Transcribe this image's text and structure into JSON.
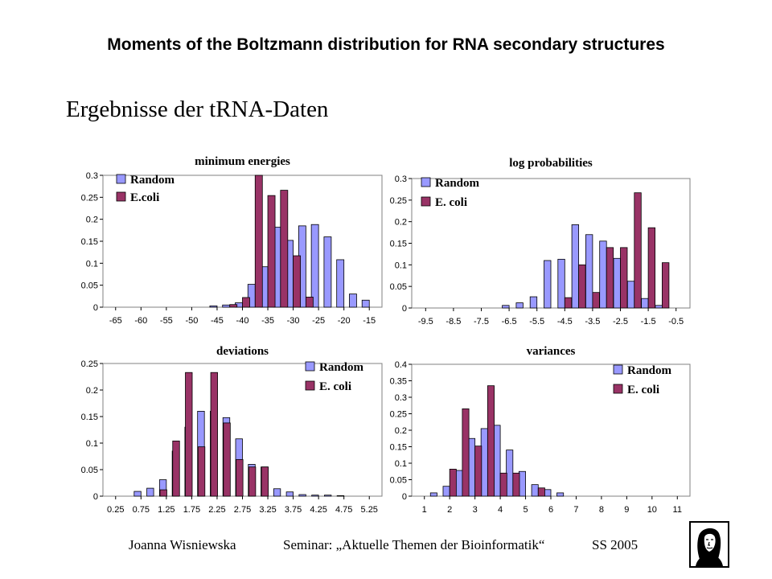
{
  "header": {
    "title": "Moments of the Boltzmann distribution for RNA secondary structures"
  },
  "slide": {
    "subtitle": "Ergebnisse der tRNA-Daten"
  },
  "footer": {
    "author": "Joanna Wisniewska",
    "seminar": "Seminar: „Aktuelle Themen der Bioinformatik“",
    "term": "SS 2005"
  },
  "colors": {
    "random": "#9999ff",
    "ecoli": "#993366",
    "plot_background": "#ffffff"
  },
  "logo_icon": "goethe-portrait-icon",
  "chart_data": [
    {
      "type": "bar",
      "title": "minimum energies",
      "xlabel": "",
      "ylabel": "",
      "ylim": [
        0,
        0.3
      ],
      "yticks": [
        "0",
        "0.05",
        "0.1",
        "0.15",
        "0.2",
        "0.25",
        "0.3"
      ],
      "xticks": [
        "-65",
        "-60",
        "-55",
        "-50",
        "-45",
        "-40",
        "-35",
        "-30",
        "-25",
        "-20",
        "-15"
      ],
      "x": [
        -45,
        -42.5,
        -40,
        -37.5,
        -35,
        -32.5,
        -30,
        -27.5,
        -25,
        -22.5,
        -20,
        -17.5,
        -15
      ],
      "legend_position": "top-left",
      "series": [
        {
          "name": "Random",
          "values": [
            0.003,
            0.005,
            0.01,
            0.052,
            0.092,
            0.182,
            0.152,
            0.185,
            0.188,
            0.16,
            0.108,
            0.03,
            0.016
          ]
        },
        {
          "name": "E.coli",
          "values": [
            0,
            0.006,
            0.022,
            0.3,
            0.254,
            0.266,
            0.117,
            0.023,
            0,
            0,
            0,
            0,
            0
          ]
        }
      ]
    },
    {
      "type": "bar",
      "title": "log probabilities",
      "xlabel": "",
      "ylabel": "",
      "ylim": [
        0,
        0.3
      ],
      "yticks": [
        "0",
        "0.05",
        "0.1",
        "0.15",
        "0.2",
        "0.25",
        "0.3"
      ],
      "xticks": [
        "-9.5",
        "-8.5",
        "-7.5",
        "-6.5",
        "-5.5",
        "-4.5",
        "-3.5",
        "-2.5",
        "-1.5",
        "-0.5"
      ],
      "x": [
        -6.5,
        -6,
        -5.5,
        -5,
        -4.5,
        -4,
        -3.5,
        -3,
        -2.5,
        -2,
        -1.5,
        -1
      ],
      "legend_position": "top-left",
      "series": [
        {
          "name": "Random",
          "values": [
            0.006,
            0.012,
            0.026,
            0.11,
            0.113,
            0.193,
            0.17,
            0.155,
            0.115,
            0.062,
            0.022,
            0.006
          ]
        },
        {
          "name": "E. coli",
          "values": [
            0,
            0,
            0,
            0,
            0.024,
            0.1,
            0.036,
            0.14,
            0.14,
            0.267,
            0.186,
            0.105
          ]
        }
      ]
    },
    {
      "type": "bar",
      "title": "deviations",
      "xlabel": "",
      "ylabel": "",
      "ylim": [
        0,
        0.25
      ],
      "yticks": [
        "0",
        "0.05",
        "0.1",
        "0.15",
        "0.2",
        "0.25"
      ],
      "xticks": [
        "0.25",
        "0.75",
        "1.25",
        "1.75",
        "2.25",
        "2.75",
        "3.25",
        "3.75",
        "4.25",
        "4.75",
        "5.25"
      ],
      "x": [
        0.75,
        0.875,
        1,
        1.125,
        1.25,
        1.375,
        1.5,
        1.625,
        1.75,
        1.875,
        2,
        2.125,
        2.25,
        2.375,
        2.5,
        2.625,
        2.75,
        2.875,
        3,
        3.125,
        3.25,
        3.375,
        3.5,
        3.75,
        4,
        4.25,
        4.5,
        4.75
      ],
      "legend_position": "top-right",
      "series": [
        {
          "name": "Random",
          "values": [
            0.009,
            0,
            0.015,
            0,
            0.031,
            0,
            0.085,
            0,
            0.13,
            0,
            0.16,
            0,
            0.16,
            0,
            0.148,
            0,
            0.108,
            0,
            0.06,
            0,
            0.055,
            0,
            0.014,
            0.008,
            0.003,
            0.002,
            0.002,
            0.001
          ]
        },
        {
          "name": "E. coli",
          "values": [
            0,
            0,
            0,
            0.012,
            0,
            0.104,
            0,
            0.233,
            0,
            0.093,
            0,
            0.233,
            0,
            0.138,
            0,
            0.069,
            0,
            0.055,
            0,
            0.055,
            0,
            0,
            0,
            0,
            0,
            0,
            0,
            0
          ]
        }
      ]
    },
    {
      "type": "bar",
      "title": "variances",
      "xlabel": "",
      "ylabel": "",
      "ylim": [
        0,
        0.4
      ],
      "yticks": [
        "0",
        "0.05",
        "0.1",
        "0.15",
        "0.2",
        "0.25",
        "0.3",
        "0.35",
        "0.4"
      ],
      "xticks": [
        "1",
        "2",
        "3",
        "4",
        "5",
        "6",
        "7",
        "8",
        "9",
        "10",
        "11"
      ],
      "x": [
        1.5,
        2,
        2.5,
        3,
        3.5,
        4,
        4.5,
        5,
        5.5,
        6,
        6.5
      ],
      "legend_position": "top-right",
      "series": [
        {
          "name": "Random",
          "values": [
            0.01,
            0.03,
            0.078,
            0.175,
            0.205,
            0.215,
            0.14,
            0.075,
            0.035,
            0.02,
            0.01
          ]
        },
        {
          "name": "E. coli",
          "values": [
            0,
            0.082,
            0.265,
            0.152,
            0.335,
            0.07,
            0.07,
            0,
            0.025,
            0,
            0
          ]
        }
      ]
    }
  ]
}
